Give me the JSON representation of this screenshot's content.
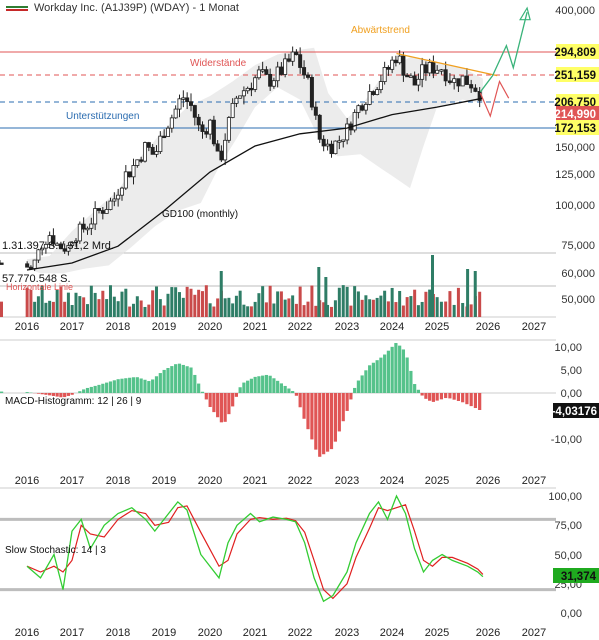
{
  "header": {
    "title": "Workday Inc. (A1J39P) (WDAY) - 1 Monat"
  },
  "colors": {
    "up": "#2e8b57",
    "down": "#d9342b",
    "volume_up": "#2e7d66",
    "volume_down": "#c94a4a",
    "resistance": "#e05555",
    "support": "#2b6cb0",
    "trend": "#f0a020",
    "gd100": "#111111",
    "channel": "#e6e6e6",
    "macd_pos": "#55c28b",
    "macd_neg": "#e05555",
    "stoch_k": "#33cc33",
    "stoch_d": "#e02020",
    "projection_up": "#3ab37a",
    "projection_down": "#e05555"
  },
  "main": {
    "annotations": {
      "trend": "Abwärtstrend",
      "resistance": "Widerstände",
      "support": "Unterstützungen",
      "gd": "GD100 (monthly)",
      "horizontal": "Horizontale Linie",
      "volume_text_1": "1.31.397 S. / 31,2 Mrd.",
      "volume_text_2": "57.770.548 S."
    },
    "price_labels": [
      {
        "value": "294,809",
        "color": "#111111",
        "bg": "#ffff66"
      },
      {
        "value": "251,159",
        "color": "#111111",
        "bg": "#ffff66"
      },
      {
        "value": "206,750",
        "color": "#111111",
        "bg": "#ffff66"
      },
      {
        "value": "214,990",
        "color": "#ffffff",
        "bg": "#e05555"
      },
      {
        "value": "172,153",
        "color": "#111111",
        "bg": "#ffff66"
      }
    ],
    "y_ticks": [
      "400,000",
      "150,000",
      "125,000",
      "100,000",
      "75,000"
    ],
    "vol_ticks": [
      "60,000",
      "50,000"
    ]
  },
  "macd": {
    "label": "MACD-Histogramm: 12 | 26 | 9",
    "y_ticks": [
      "10,00",
      "5,00",
      "0,00",
      "-10,00"
    ],
    "value": "-4,03176"
  },
  "stoch": {
    "label": "Slow Stochastic: 14 | 3",
    "y_ticks": [
      "100,00",
      "75,00",
      "50,00",
      "25,00",
      "0,00"
    ],
    "value": "31,374"
  },
  "x_labels": [
    "2016",
    "2017",
    "2018",
    "2019",
    "2020",
    "2021",
    "2022",
    "2023",
    "2024",
    "2025",
    "2026",
    "2027"
  ],
  "chart_data": {
    "type": "candlestick",
    "title": "Workday Inc. (A1J39P) (WDAY) - 1 Monat",
    "x": [
      "2016",
      "2017",
      "2018",
      "2019",
      "2020",
      "2021",
      "2022",
      "2023",
      "2024",
      "2025",
      "2026",
      "2027"
    ],
    "price_close_by_year_approx": [
      72,
      85,
      120,
      185,
      165,
      240,
      260,
      160,
      260,
      240,
      215
    ],
    "levels": {
      "resistance_1": 294.809,
      "resistance_2": 251.159,
      "support_1": 206.75,
      "support_2": 172.153,
      "current": 214.99
    },
    "macd_hist_last": -4.03176,
    "stoch_last": 31.374
  }
}
